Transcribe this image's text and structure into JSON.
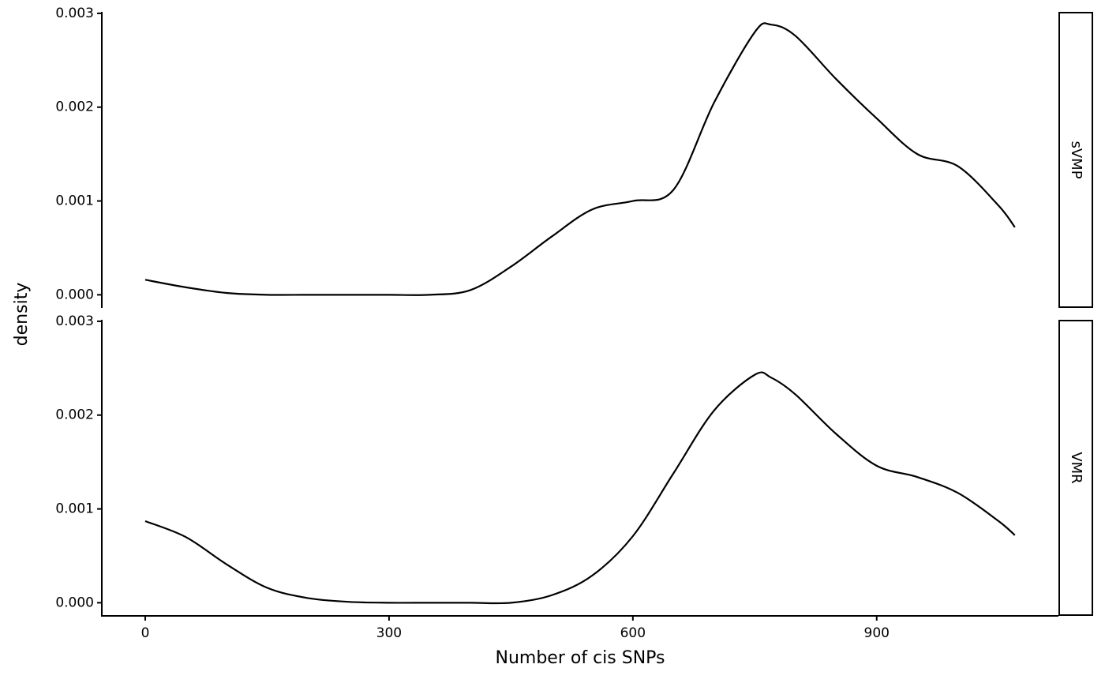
{
  "chart_data": {
    "type": "line",
    "x_label": "Number of cis SNPs",
    "y_label": "density",
    "x": [
      0,
      50,
      100,
      150,
      200,
      250,
      300,
      350,
      400,
      450,
      500,
      550,
      600,
      650,
      700,
      750,
      770,
      800,
      850,
      900,
      950,
      1000,
      1050,
      1070
    ],
    "series": [
      {
        "name": "sVMP",
        "color": "#000000",
        "values": [
          0.00016,
          8e-05,
          2e-05,
          0,
          0,
          0,
          0,
          0,
          5e-05,
          0.0003,
          0.00062,
          0.00091,
          0.001,
          0.00112,
          0.00205,
          0.0028,
          0.00288,
          0.00276,
          0.0023,
          0.00188,
          0.0015,
          0.00137,
          0.00095,
          0.00072
        ]
      },
      {
        "name": "VMR",
        "color": "#000000",
        "values": [
          0.00087,
          0.0007,
          0.00041,
          0.00016,
          5e-05,
          1e-05,
          0,
          0,
          0,
          0,
          8e-05,
          0.00029,
          0.00071,
          0.00138,
          0.00205,
          0.00243,
          0.0024,
          0.00222,
          0.0018,
          0.00146,
          0.00134,
          0.00117,
          0.00087,
          0.00072
        ]
      }
    ],
    "xlim": [
      -53.4,
      1123.6
    ],
    "xticks": [
      0,
      300,
      600,
      900
    ],
    "ylim": [
      -0.00014,
      0.003016
    ],
    "yticks": [
      {
        "value": 0,
        "label": "0.000"
      },
      {
        "value": 0.001,
        "label": "0.001"
      },
      {
        "value": 0.002,
        "label": "0.002"
      },
      {
        "value": 0.003,
        "label": "0.003"
      }
    ]
  }
}
